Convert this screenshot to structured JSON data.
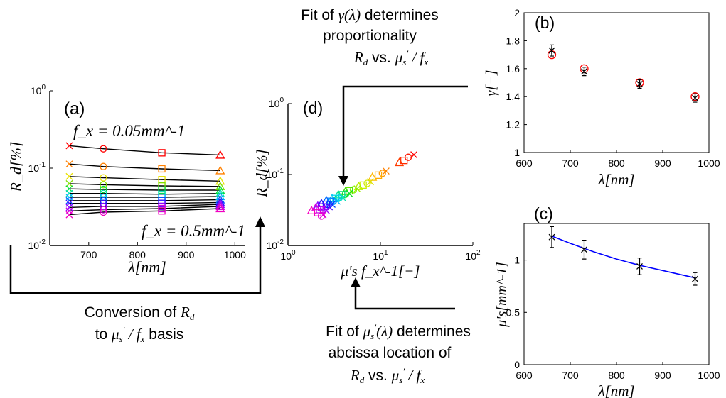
{
  "chart_data": [
    {
      "type": "scatter",
      "panel": "(a)",
      "ylabel": "R_d[%]",
      "xlabel": "λ[nm]",
      "yscale": "log",
      "xlim": [
        620,
        1020
      ],
      "ylim": [
        0.01,
        1
      ],
      "x_ticks": [
        "700",
        "800",
        "900",
        "1000"
      ],
      "y_ticks": [
        "10^0",
        "10^-1",
        "10^-2"
      ],
      "annotations": [
        "f_x = 0.05mm^-1",
        "f_x = 0.5mm^-1"
      ],
      "x": [
        660,
        730,
        850,
        970
      ],
      "series": [
        {
          "values": [
            0.195,
            0.178,
            0.158,
            0.148
          ]
        },
        {
          "values": [
            0.113,
            0.105,
            0.098,
            0.093
          ]
        },
        {
          "values": [
            0.078,
            0.075,
            0.071,
            0.068
          ]
        },
        {
          "values": [
            0.063,
            0.061,
            0.059,
            0.058
          ]
        },
        {
          "values": [
            0.054,
            0.053,
            0.052,
            0.052
          ]
        },
        {
          "values": [
            0.047,
            0.047,
            0.046,
            0.047
          ]
        },
        {
          "values": [
            0.042,
            0.042,
            0.042,
            0.043
          ]
        },
        {
          "values": [
            0.038,
            0.038,
            0.038,
            0.039
          ]
        },
        {
          "values": [
            0.035,
            0.035,
            0.035,
            0.036
          ]
        },
        {
          "values": [
            0.031,
            0.032,
            0.032,
            0.034
          ]
        },
        {
          "values": [
            0.028,
            0.029,
            0.03,
            0.032
          ]
        },
        {
          "values": [
            0.025,
            0.027,
            0.028,
            0.03
          ]
        }
      ]
    },
    {
      "type": "scatter",
      "panel": "(b)",
      "ylabel": "γ[−]",
      "xlabel": "λ[nm]",
      "xlim": [
        600,
        1000
      ],
      "ylim": [
        1,
        2
      ],
      "x_ticks": [
        "600",
        "700",
        "800",
        "900",
        "1000"
      ],
      "y_ticks": [
        "1",
        "1.2",
        "1.4",
        "1.6",
        "1.8",
        "2"
      ],
      "x": [
        660,
        730,
        850,
        970
      ],
      "fit": [
        1.7,
        1.6,
        1.5,
        1.4
      ],
      "measured": [
        1.73,
        1.58,
        1.49,
        1.39
      ],
      "error": [
        0.04,
        0.03,
        0.03,
        0.03
      ]
    },
    {
      "type": "line",
      "panel": "(c)",
      "ylabel": "μ's[mm^-1]",
      "xlabel": "λ[nm]",
      "xlim": [
        600,
        1000
      ],
      "ylim": [
        0,
        1.35
      ],
      "x_ticks": [
        "600",
        "700",
        "800",
        "900",
        "1000"
      ],
      "y_ticks": [
        "0",
        "0.5",
        "1"
      ],
      "x": [
        660,
        730,
        850,
        970
      ],
      "measured": [
        1.22,
        1.1,
        0.94,
        0.82
      ],
      "error": [
        0.1,
        0.09,
        0.08,
        0.06
      ],
      "fit_x": [
        660,
        700,
        750,
        800,
        850,
        900,
        950,
        970
      ],
      "fit_y": [
        1.23,
        1.16,
        1.08,
        1.01,
        0.95,
        0.9,
        0.85,
        0.83
      ]
    },
    {
      "type": "scatter",
      "panel": "(d)",
      "ylabel": "R_d[%]",
      "xlabel": "μ's f_x^-1[−]",
      "xscale": "log",
      "yscale": "log",
      "xlim": [
        1,
        100
      ],
      "ylim": [
        0.01,
        1
      ],
      "x_ticks": [
        "10^0",
        "10^1",
        "10^2"
      ],
      "y_ticks": [
        "10^0",
        "10^-1",
        "10^-2"
      ],
      "points": [
        {
          "x": 23.0,
          "y": 0.19,
          "c": "#ff0000",
          "m": "x"
        },
        {
          "x": 20.0,
          "y": 0.175,
          "c": "#ff1500",
          "m": "o"
        },
        {
          "x": 18.0,
          "y": 0.158,
          "c": "#ff2a00",
          "m": "s"
        },
        {
          "x": 16.0,
          "y": 0.148,
          "c": "#ff3c00",
          "m": "^"
        },
        {
          "x": 11.5,
          "y": 0.112,
          "c": "#ff8000",
          "m": "x"
        },
        {
          "x": 10.5,
          "y": 0.104,
          "c": "#ff9a00",
          "m": "o"
        },
        {
          "x": 9.5,
          "y": 0.098,
          "c": "#ffaa00",
          "m": "s"
        },
        {
          "x": 8.2,
          "y": 0.092,
          "c": "#ffb800",
          "m": "^"
        },
        {
          "x": 7.8,
          "y": 0.079,
          "c": "#e0e000",
          "m": "x"
        },
        {
          "x": 7.2,
          "y": 0.075,
          "c": "#d5e800",
          "m": "o"
        },
        {
          "x": 6.5,
          "y": 0.071,
          "c": "#c8f000",
          "m": "s"
        },
        {
          "x": 5.8,
          "y": 0.068,
          "c": "#b8f000",
          "m": "^"
        },
        {
          "x": 5.6,
          "y": 0.063,
          "c": "#9cf000",
          "m": "x"
        },
        {
          "x": 5.1,
          "y": 0.061,
          "c": "#7ef000",
          "m": "o"
        },
        {
          "x": 4.6,
          "y": 0.059,
          "c": "#5ee800",
          "m": "s"
        },
        {
          "x": 4.2,
          "y": 0.058,
          "c": "#3ce000",
          "m": "^"
        },
        {
          "x": 4.6,
          "y": 0.054,
          "c": "#10e020",
          "m": "x"
        },
        {
          "x": 4.2,
          "y": 0.053,
          "c": "#00e040",
          "m": "o"
        },
        {
          "x": 3.8,
          "y": 0.052,
          "c": "#00e070",
          "m": "s"
        },
        {
          "x": 3.5,
          "y": 0.052,
          "c": "#00e090",
          "m": "^"
        },
        {
          "x": 3.9,
          "y": 0.047,
          "c": "#00e0b0",
          "m": "x"
        },
        {
          "x": 3.6,
          "y": 0.047,
          "c": "#00e0d0",
          "m": "o"
        },
        {
          "x": 3.3,
          "y": 0.046,
          "c": "#00d8e8",
          "m": "s"
        },
        {
          "x": 3.0,
          "y": 0.046,
          "c": "#00c8f0",
          "m": "^"
        },
        {
          "x": 3.4,
          "y": 0.042,
          "c": "#00b0ff",
          "m": "x"
        },
        {
          "x": 3.1,
          "y": 0.042,
          "c": "#0098ff",
          "m": "o"
        },
        {
          "x": 2.9,
          "y": 0.042,
          "c": "#0080ff",
          "m": "s"
        },
        {
          "x": 2.6,
          "y": 0.043,
          "c": "#0068ff",
          "m": "^"
        },
        {
          "x": 3.0,
          "y": 0.038,
          "c": "#0050ff",
          "m": "x"
        },
        {
          "x": 2.8,
          "y": 0.038,
          "c": "#0038ff",
          "m": "o"
        },
        {
          "x": 2.6,
          "y": 0.038,
          "c": "#1020ff",
          "m": "s"
        },
        {
          "x": 2.3,
          "y": 0.039,
          "c": "#2810ff",
          "m": "^"
        },
        {
          "x": 2.8,
          "y": 0.035,
          "c": "#4000ff",
          "m": "x"
        },
        {
          "x": 2.6,
          "y": 0.035,
          "c": "#5800ff",
          "m": "o"
        },
        {
          "x": 2.3,
          "y": 0.035,
          "c": "#7000ff",
          "m": "s"
        },
        {
          "x": 2.1,
          "y": 0.036,
          "c": "#8800ff",
          "m": "^"
        },
        {
          "x": 2.6,
          "y": 0.031,
          "c": "#a000ff",
          "m": "x"
        },
        {
          "x": 2.4,
          "y": 0.032,
          "c": "#b800f0",
          "m": "o"
        },
        {
          "x": 2.2,
          "y": 0.032,
          "c": "#c800e8",
          "m": "s"
        },
        {
          "x": 2.0,
          "y": 0.034,
          "c": "#d800e0",
          "m": "^"
        },
        {
          "x": 2.4,
          "y": 0.027,
          "c": "#e000d8",
          "m": "x"
        },
        {
          "x": 2.3,
          "y": 0.026,
          "c": "#e800d0",
          "m": "o"
        },
        {
          "x": 2.1,
          "y": 0.029,
          "c": "#f000c8",
          "m": "s"
        },
        {
          "x": 1.8,
          "y": 0.031,
          "c": "#f800c0",
          "m": "^"
        }
      ]
    }
  ],
  "captions": {
    "top_line1_pre": "Fit of ",
    "top_line1_post": "  determines",
    "top_line2": "proportionality",
    "top_line3_mid": " vs. ",
    "left_line1": "Conversion of ",
    "left_line2_pre": "to  ",
    "left_line2_post": " basis",
    "bottom_line1_pre": "Fit of ",
    "bottom_line1_post": " determines",
    "bottom_line2": "abcissa location of",
    "bottom_line3_mid": " vs. "
  },
  "colors": {
    "fit_circle": "#ff0000",
    "fit_line_c": "#0000ff"
  }
}
